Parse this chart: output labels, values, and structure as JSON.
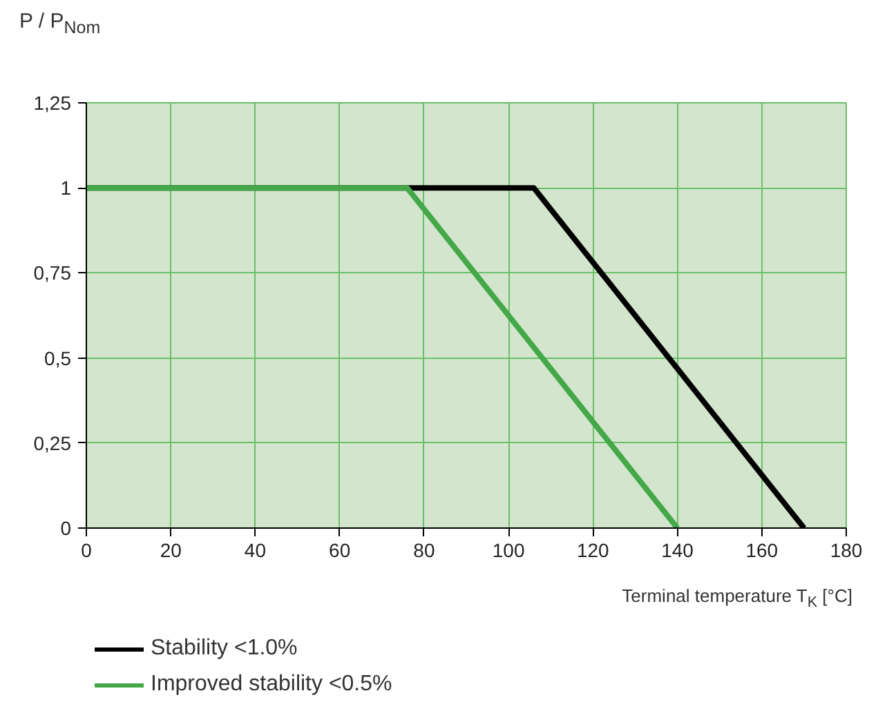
{
  "chart_data": {
    "type": "line",
    "xlabel": "Terminal temperature T$_{K}$ [°C]",
    "ylabel": "P / P$_{Nom}$",
    "series": [
      {
        "name": "Stability <1.0%",
        "color": "#000000",
        "x": [
          0,
          106,
          170
        ],
        "values": [
          1,
          1,
          0
        ]
      },
      {
        "name": "Improved stability <0.5%",
        "color": "#44a848",
        "x": [
          0,
          76,
          140
        ],
        "values": [
          1,
          1,
          0
        ]
      }
    ],
    "xlim": [
      0,
      180
    ],
    "xticks": [
      0,
      20,
      40,
      60,
      80,
      100,
      120,
      140,
      160,
      180
    ],
    "ylim": [
      0,
      1.25
    ],
    "yticks": [
      {
        "value": 0,
        "label": "0"
      },
      {
        "value": 0.25,
        "label": "0,25"
      },
      {
        "value": 0.5,
        "label": "0,5"
      },
      {
        "value": 0.75,
        "label": "0,75"
      },
      {
        "value": 1,
        "label": "1"
      },
      {
        "value": 1.25,
        "label": "1,25"
      }
    ],
    "grid": true,
    "legend": "bottom",
    "marker": "none",
    "line_style": "solid"
  }
}
